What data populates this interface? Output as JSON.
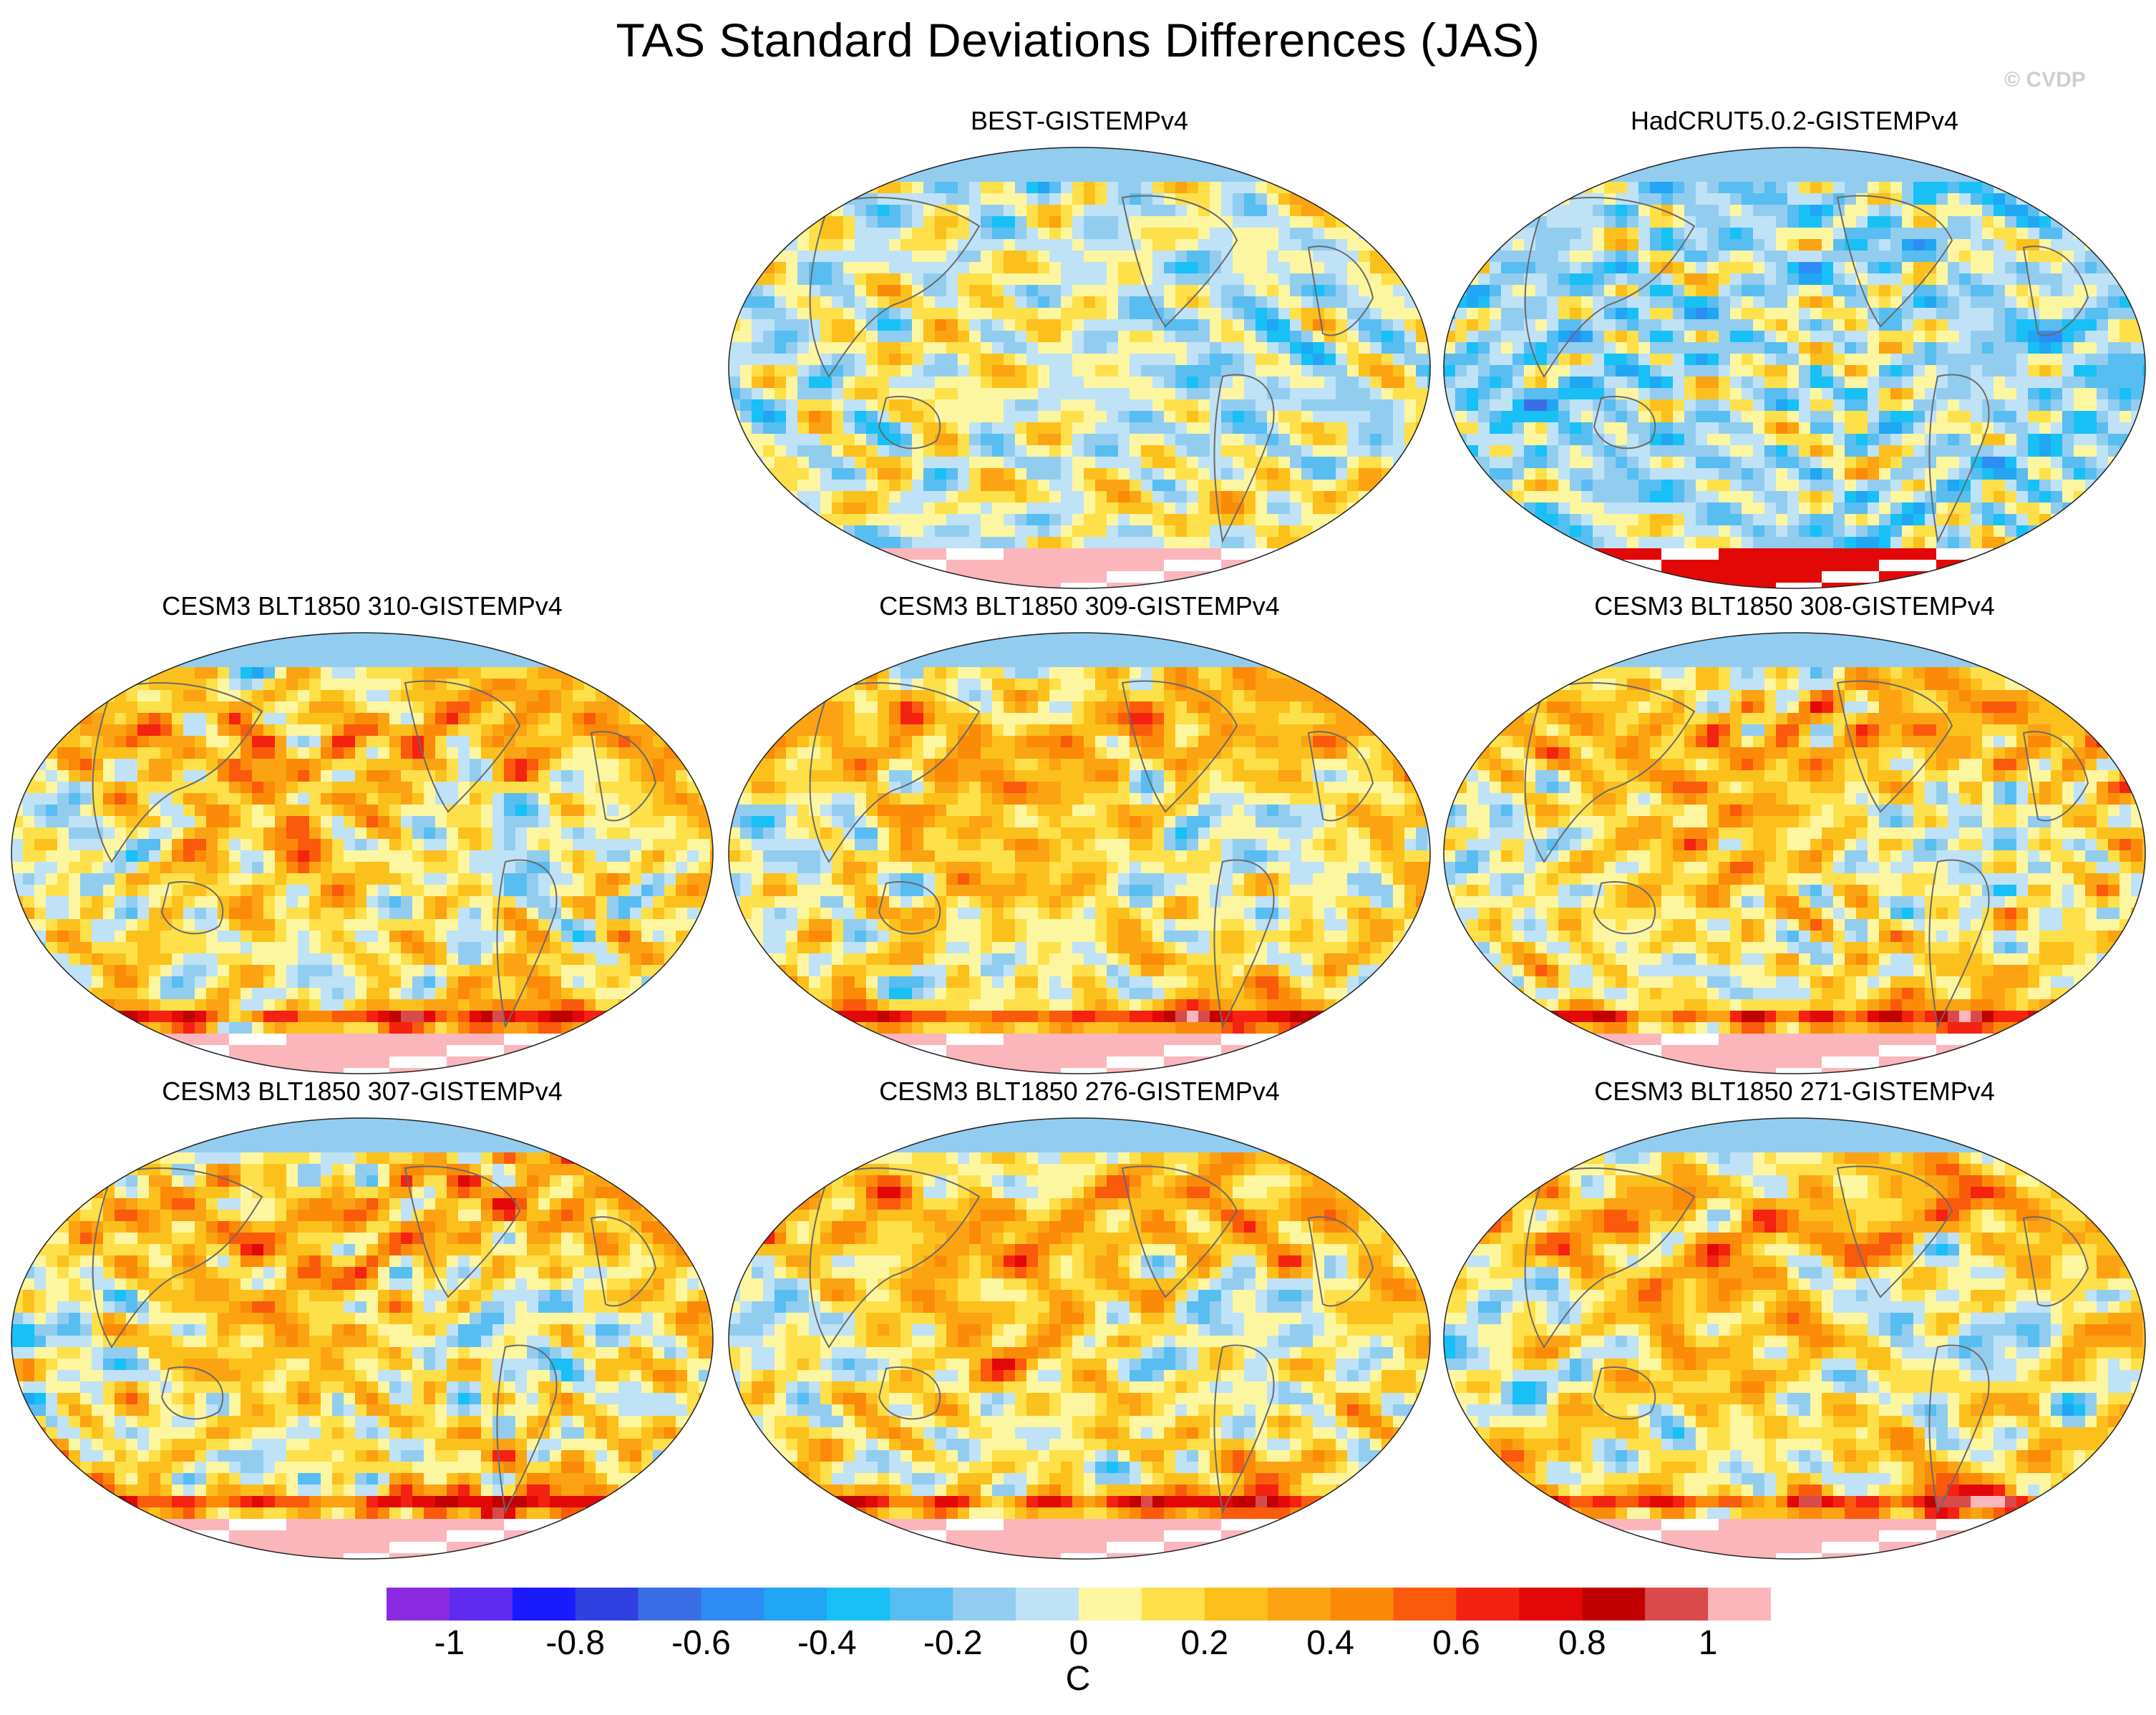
{
  "figure": {
    "title": "TAS Standard Deviations Differences (JAS)",
    "credit": "© CVDP"
  },
  "panels": [
    {
      "title": "BEST-GISTEMPv4",
      "style": "obs_best"
    },
    {
      "title": "HadCRUT5.0.2-GISTEMPv4",
      "style": "obs_had"
    },
    {
      "title": "CESM3 BLT1850 310-GISTEMPv4",
      "style": "model"
    },
    {
      "title": "CESM3 BLT1850 309-GISTEMPv4",
      "style": "model"
    },
    {
      "title": "CESM3 BLT1850 308-GISTEMPv4",
      "style": "model"
    },
    {
      "title": "CESM3 BLT1850 307-GISTEMPv4",
      "style": "model"
    },
    {
      "title": "CESM3 BLT1850 276-GISTEMPv4",
      "style": "model"
    },
    {
      "title": "CESM3 BLT1850 271-GISTEMPv4",
      "style": "model"
    }
  ],
  "colorbar": {
    "units": "C",
    "levels": [
      -1.1,
      -1.0,
      -0.9,
      -0.8,
      -0.7,
      -0.6,
      -0.5,
      -0.4,
      -0.3,
      -0.2,
      -0.1,
      0,
      0.1,
      0.2,
      0.3,
      0.4,
      0.5,
      0.6,
      0.7,
      0.8,
      0.9,
      1.0,
      1.1
    ],
    "tick_labels": [
      "-1",
      "-0.8",
      "-0.6",
      "-0.4",
      "-0.2",
      "0",
      "0.2",
      "0.4",
      "0.6",
      "0.8",
      "1"
    ],
    "colors": [
      "#8a2be2",
      "#5e2bef",
      "#1a1aff",
      "#3040e0",
      "#3a6ee6",
      "#2f8cf5",
      "#20a6f2",
      "#18c0f5",
      "#58bdf0",
      "#92cdf0",
      "#bfe2f7",
      "#fdf6a0",
      "#fde04a",
      "#fcc01c",
      "#fba312",
      "#fb8a08",
      "#fa5a0b",
      "#f42210",
      "#e30808",
      "#c00000",
      "#d94b4b",
      "#fbb6bb"
    ]
  }
}
